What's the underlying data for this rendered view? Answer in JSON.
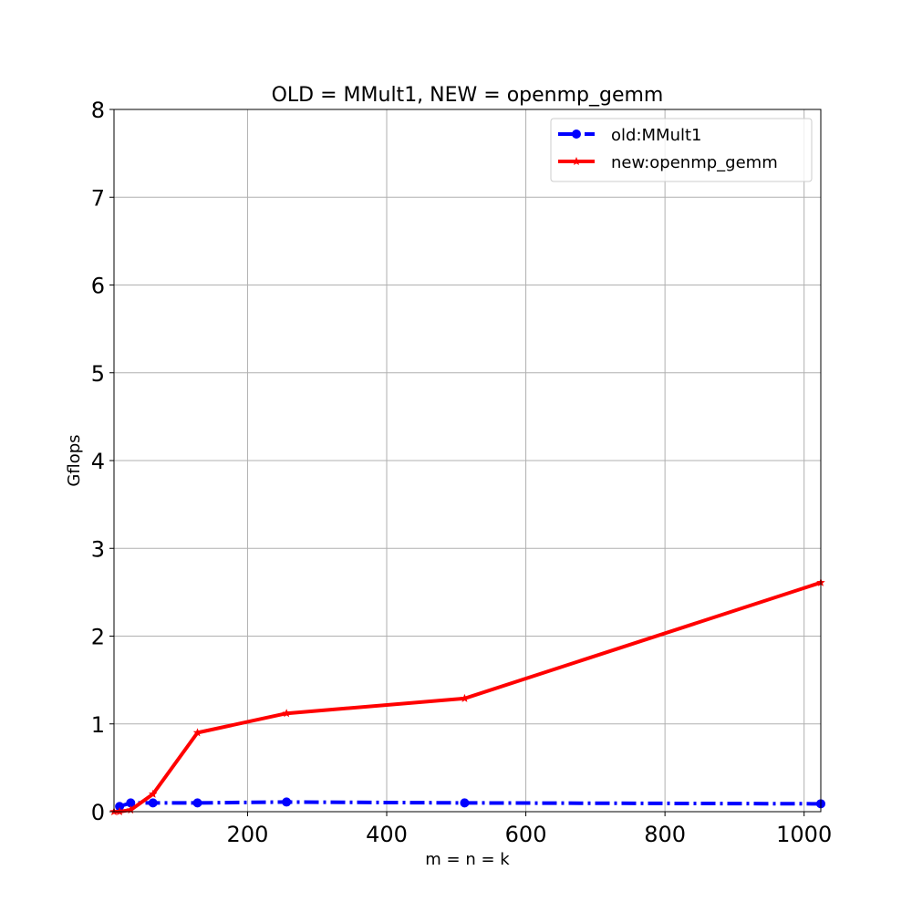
{
  "chart_data": {
    "type": "line",
    "title": "OLD = MMult1, NEW = openmp_gemm",
    "xlabel": "m = n = k",
    "ylabel": "Gflops",
    "xlim": [
      8,
      1024
    ],
    "ylim": [
      0,
      8
    ],
    "xticks": [
      200,
      400,
      600,
      800,
      1000
    ],
    "yticks": [
      0,
      1,
      2,
      3,
      4,
      5,
      6,
      7,
      8
    ],
    "grid": true,
    "legend_position": "top-right",
    "series": [
      {
        "name": "old:MMult1",
        "color": "#0000ff",
        "linestyle": "dashdot",
        "marker": "circle",
        "x": [
          16,
          32,
          64,
          128,
          256,
          512,
          1024
        ],
        "y": [
          0.06,
          0.1,
          0.1,
          0.1,
          0.11,
          0.1,
          0.09
        ]
      },
      {
        "name": "new:openmp_gemm",
        "color": "#ff0000",
        "linestyle": "solid",
        "marker": "star",
        "x": [
          8,
          16,
          32,
          64,
          128,
          256,
          512,
          1024
        ],
        "y": [
          0.0,
          0.0,
          0.02,
          0.2,
          0.9,
          1.12,
          1.29,
          2.61
        ]
      }
    ]
  }
}
